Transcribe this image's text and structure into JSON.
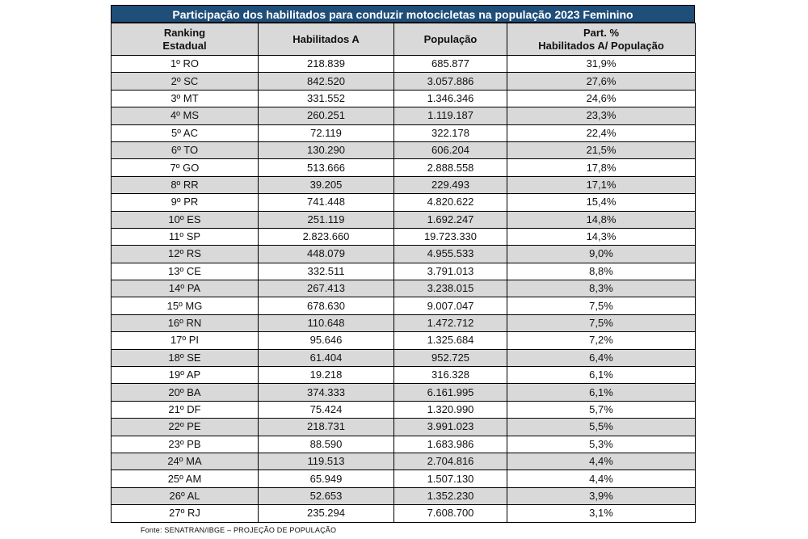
{
  "title": "Participação dos habilitados para conduzir motocicletas na população 2023 Feminino",
  "headers": {
    "col1_line1": "Ranking",
    "col1_line2": "Estadual",
    "col2": "Habilitados A",
    "col3": "População",
    "col4_line1": "Part. %",
    "col4_line2": "Habilitados A/ População"
  },
  "rows": [
    {
      "rank": "1º RO",
      "hab": "218.839",
      "pop": "685.877",
      "part": "31,9%"
    },
    {
      "rank": "2º SC",
      "hab": "842.520",
      "pop": "3.057.886",
      "part": "27,6%"
    },
    {
      "rank": "3º MT",
      "hab": "331.552",
      "pop": "1.346.346",
      "part": "24,6%"
    },
    {
      "rank": "4º MS",
      "hab": "260.251",
      "pop": "1.119.187",
      "part": "23,3%"
    },
    {
      "rank": "5º AC",
      "hab": "72.119",
      "pop": "322.178",
      "part": "22,4%"
    },
    {
      "rank": "6º TO",
      "hab": "130.290",
      "pop": "606.204",
      "part": "21,5%"
    },
    {
      "rank": "7º GO",
      "hab": "513.666",
      "pop": "2.888.558",
      "part": "17,8%"
    },
    {
      "rank": "8º RR",
      "hab": "39.205",
      "pop": "229.493",
      "part": "17,1%"
    },
    {
      "rank": "9º PR",
      "hab": "741.448",
      "pop": "4.820.622",
      "part": "15,4%"
    },
    {
      "rank": "10º ES",
      "hab": "251.119",
      "pop": "1.692.247",
      "part": "14,8%"
    },
    {
      "rank": "11º SP",
      "hab": "2.823.660",
      "pop": "19.723.330",
      "part": "14,3%"
    },
    {
      "rank": "12º RS",
      "hab": "448.079",
      "pop": "4.955.533",
      "part": "9,0%"
    },
    {
      "rank": "13º CE",
      "hab": "332.511",
      "pop": "3.791.013",
      "part": "8,8%"
    },
    {
      "rank": "14º PA",
      "hab": "267.413",
      "pop": "3.238.015",
      "part": "8,3%"
    },
    {
      "rank": "15º MG",
      "hab": "678.630",
      "pop": "9.007.047",
      "part": "7,5%"
    },
    {
      "rank": "16º RN",
      "hab": "110.648",
      "pop": "1.472.712",
      "part": "7,5%"
    },
    {
      "rank": "17º PI",
      "hab": "95.646",
      "pop": "1.325.684",
      "part": "7,2%"
    },
    {
      "rank": "18º SE",
      "hab": "61.404",
      "pop": "952.725",
      "part": "6,4%"
    },
    {
      "rank": "19º AP",
      "hab": "19.218",
      "pop": "316.328",
      "part": "6,1%"
    },
    {
      "rank": "20º BA",
      "hab": "374.333",
      "pop": "6.161.995",
      "part": "6,1%"
    },
    {
      "rank": "21º DF",
      "hab": "75.424",
      "pop": "1.320.990",
      "part": "5,7%"
    },
    {
      "rank": "22º PE",
      "hab": "218.731",
      "pop": "3.991.023",
      "part": "5,5%"
    },
    {
      "rank": "23º PB",
      "hab": "88.590",
      "pop": "1.683.986",
      "part": "5,3%"
    },
    {
      "rank": "24º MA",
      "hab": "119.513",
      "pop": "2.704.816",
      "part": "4,4%"
    },
    {
      "rank": "25º AM",
      "hab": "65.949",
      "pop": "1.507.130",
      "part": "4,4%"
    },
    {
      "rank": "26º AL",
      "hab": "52.653",
      "pop": "1.352.230",
      "part": "3,9%"
    },
    {
      "rank": "27º RJ",
      "hab": "235.294",
      "pop": "7.608.700",
      "part": "3,1%"
    }
  ],
  "source": "Fonte: SENATRAN/IBGE – PROJEÇÃO DE POPULAÇÃO",
  "colors": {
    "title_bg": "#1f4e79",
    "header_bg": "#d9d9d9",
    "alt_row_bg": "#d9d9d9"
  }
}
